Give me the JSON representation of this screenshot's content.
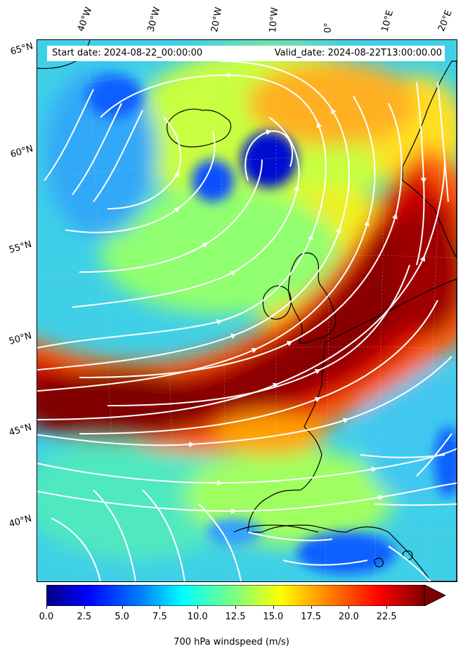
{
  "header": {
    "start_date": "Start date: 2024-08-22_00:00:00",
    "valid_date": "Valid_date: 2024-08-22T13:00:00.00"
  },
  "longitude_labels": [
    "40°W",
    "30°W",
    "20°W",
    "10°W",
    "0°",
    "10°E",
    "20°E"
  ],
  "latitude_labels": [
    "65°N",
    "60°N",
    "55°N",
    "50°N",
    "45°N",
    "40°N"
  ],
  "colorbar": {
    "label": "700 hPa windspeed (m/s)",
    "ticks": [
      "0.0",
      "2.5",
      "5.0",
      "7.5",
      "10.0",
      "12.5",
      "15.0",
      "17.5",
      "20.0",
      "22.5"
    ],
    "range": [
      0,
      25
    ],
    "extend": "max",
    "colormap": [
      "#00007f",
      "#0000ff",
      "#007fff",
      "#00ffff",
      "#7fff7f",
      "#ffff00",
      "#ff7f00",
      "#ff0000",
      "#7f0000"
    ]
  },
  "map": {
    "projection": "lambert-conformal",
    "coastline_color": "#000000",
    "streamline_color": "#ffffff",
    "variable": "700 hPa windspeed"
  }
}
